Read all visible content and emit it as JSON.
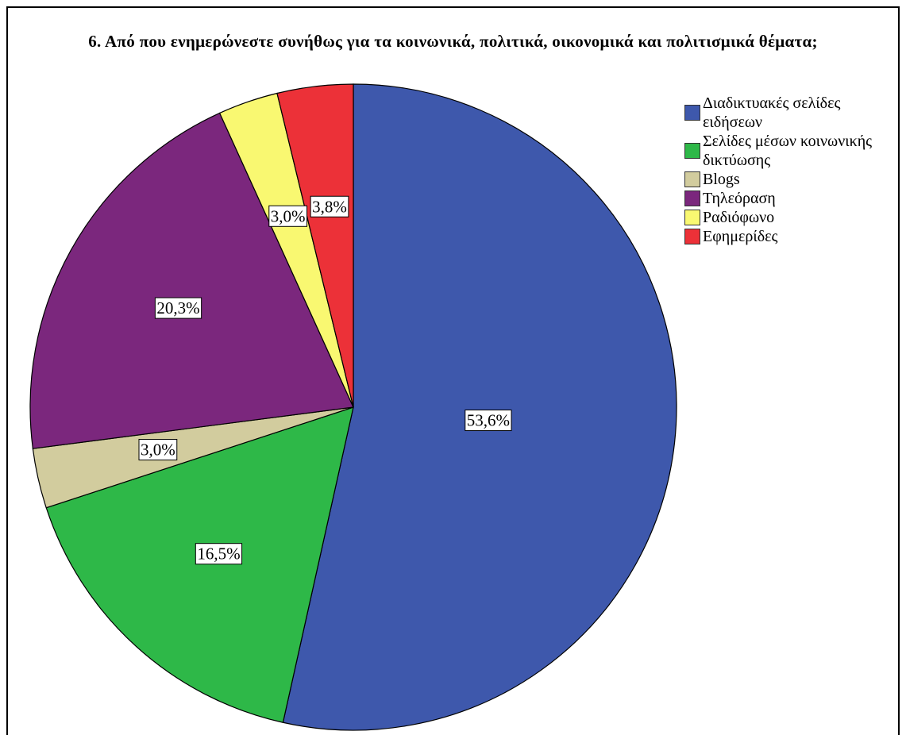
{
  "chart_data": {
    "type": "pie",
    "title": "6. Από που ενημερώνεστε συνήθως για τα κοινωνικά, πολιτικά, οικονομικά και πολιτισμικά θέματα;",
    "categories": [
      "Διαδικτυακές σελίδες ειδήσεων",
      "Σελίδες μέσων κοινωνικής δικτύωσης",
      "Blogs",
      "Τηλεόραση",
      "Ραδιόφωνο",
      "Εφημερίδες"
    ],
    "values": [
      53.6,
      16.5,
      3.0,
      20.3,
      3.0,
      3.8
    ],
    "value_labels": [
      "53,6%",
      "16,5%",
      "3,0%",
      "20,3%",
      "3,0%",
      "3,8%"
    ],
    "colors": [
      "#3e58ac",
      "#2eb848",
      "#d2cc9e",
      "#7b277d",
      "#f9f871",
      "#ec3138"
    ],
    "legend": "right"
  }
}
